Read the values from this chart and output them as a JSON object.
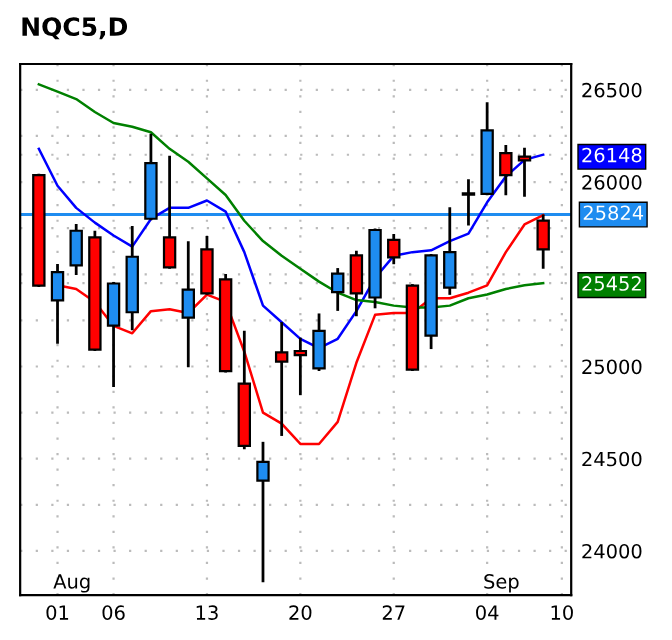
{
  "chart_data": {
    "type": "candlestick",
    "title": "NQC5,D",
    "categories": [
      null,
      "01",
      null,
      null,
      "06",
      null,
      null,
      null,
      null,
      "13",
      null,
      null,
      null,
      null,
      "20",
      null,
      null,
      null,
      null,
      "27",
      null,
      null,
      null,
      null,
      "04",
      null,
      null,
      null,
      "10"
    ],
    "ohlc": [
      [
        26037,
        26037,
        25439,
        25439
      ],
      [
        25359,
        25548,
        25131,
        25512
      ],
      [
        25548,
        25765,
        25504,
        25736
      ],
      [
        25700,
        25729,
        25091,
        25091
      ],
      [
        25222,
        25450,
        24896,
        25450
      ],
      [
        25294,
        25754,
        25204,
        25595
      ],
      [
        25801,
        26254,
        25801,
        26102
      ],
      [
        25700,
        26135,
        25537,
        25537
      ],
      [
        25265,
        25671,
        25004,
        25417
      ],
      [
        25635,
        25700,
        25396,
        25396
      ],
      [
        25472,
        25494,
        24975,
        24975
      ],
      [
        24907,
        25186,
        24559,
        24570
      ],
      [
        24381,
        24584,
        23838,
        24483
      ],
      [
        25077,
        25233,
        24631,
        25026
      ],
      [
        25084,
        25149,
        24852,
        25062
      ],
      [
        24990,
        25280,
        24983,
        25193
      ],
      [
        25403,
        25526,
        25309,
        25504
      ],
      [
        25602,
        25620,
        25280,
        25396
      ],
      [
        25374,
        25740,
        25323,
        25740
      ],
      [
        25686,
        25711,
        25562,
        25591
      ],
      [
        25439,
        25439,
        24983,
        24983
      ],
      [
        25167,
        25602,
        25102,
        25602
      ],
      [
        25428,
        25856,
        25396,
        25620
      ],
      [
        25932,
        26008,
        25772,
        25939
      ],
      [
        25936,
        26425,
        25936,
        26280
      ],
      [
        26157,
        26193,
        25936,
        26037
      ],
      [
        26138,
        26178,
        25928,
        26117
      ],
      [
        25791,
        25816,
        25537,
        25635
      ],
      null
    ],
    "colors": [
      "#ff0000",
      "#1e8cf0",
      "#1e8cf0",
      "#ff0000",
      "#1e8cf0",
      "#1e8cf0",
      "#1e8cf0",
      "#ff0000",
      "#1e8cf0",
      "#ff0000",
      "#ff0000",
      "#ff0000",
      "#1e8cf0",
      "#ff0000",
      "#ff0000",
      "#1e8cf0",
      "#1e8cf0",
      "#ff0000",
      "#1e8cf0",
      "#ff0000",
      "#ff0000",
      "#1e8cf0",
      "#1e8cf0",
      "#1e8cf0",
      "#1e8cf0",
      "#ff0000",
      "#ff0000",
      "#ff0000",
      null
    ],
    "series": [
      {
        "type": "line",
        "color": "#0000ff",
        "values": [
          26180,
          25980,
          25860,
          25780,
          25710,
          25650,
          25800,
          25860,
          25860,
          25900,
          25840,
          25620,
          25330,
          25240,
          25150,
          25100,
          25150,
          25300,
          25480,
          25600,
          25620,
          25630,
          25680,
          25720,
          25890,
          26030,
          26120,
          26148,
          null
        ]
      },
      {
        "type": "line",
        "color": "#ff0000",
        "values": [
          null,
          25440,
          25420,
          25350,
          25220,
          25180,
          25300,
          25310,
          25290,
          25390,
          25350,
          25080,
          24750,
          24690,
          24580,
          24580,
          24700,
          25020,
          25280,
          25290,
          25290,
          25370,
          25370,
          25400,
          25440,
          25620,
          25770,
          25820,
          null
        ]
      },
      {
        "type": "line",
        "color": "#008000",
        "values": [
          26530,
          26490,
          26450,
          26380,
          26320,
          26300,
          26270,
          26180,
          26110,
          26020,
          25930,
          25790,
          25680,
          25600,
          25530,
          25460,
          25400,
          25360,
          25350,
          25330,
          25320,
          25320,
          25330,
          25370,
          25390,
          25420,
          25440,
          25452,
          null
        ]
      }
    ],
    "ref_lines": [
      {
        "axis": "y",
        "value": 25824,
        "label": "25824",
        "color": "#1e8cf0"
      }
    ],
    "annotations": [
      "Aug",
      "Sep"
    ],
    "ylim": [
      23760,
      26640
    ],
    "yticks": [
      24000,
      {
        "value": 24250,
        "label": null
      },
      24500,
      {
        "value": 24750,
        "label": null
      },
      25000,
      {
        "value": 25250,
        "label": null
      },
      {
        "value": 25500,
        "label": null
      },
      {
        "value": 25750,
        "label": null
      },
      26000,
      {
        "value": 26250,
        "label": null
      },
      26500,
      26148,
      25452
    ],
    "grid": true,
    "line_style": "solid",
    "marker": "none"
  }
}
